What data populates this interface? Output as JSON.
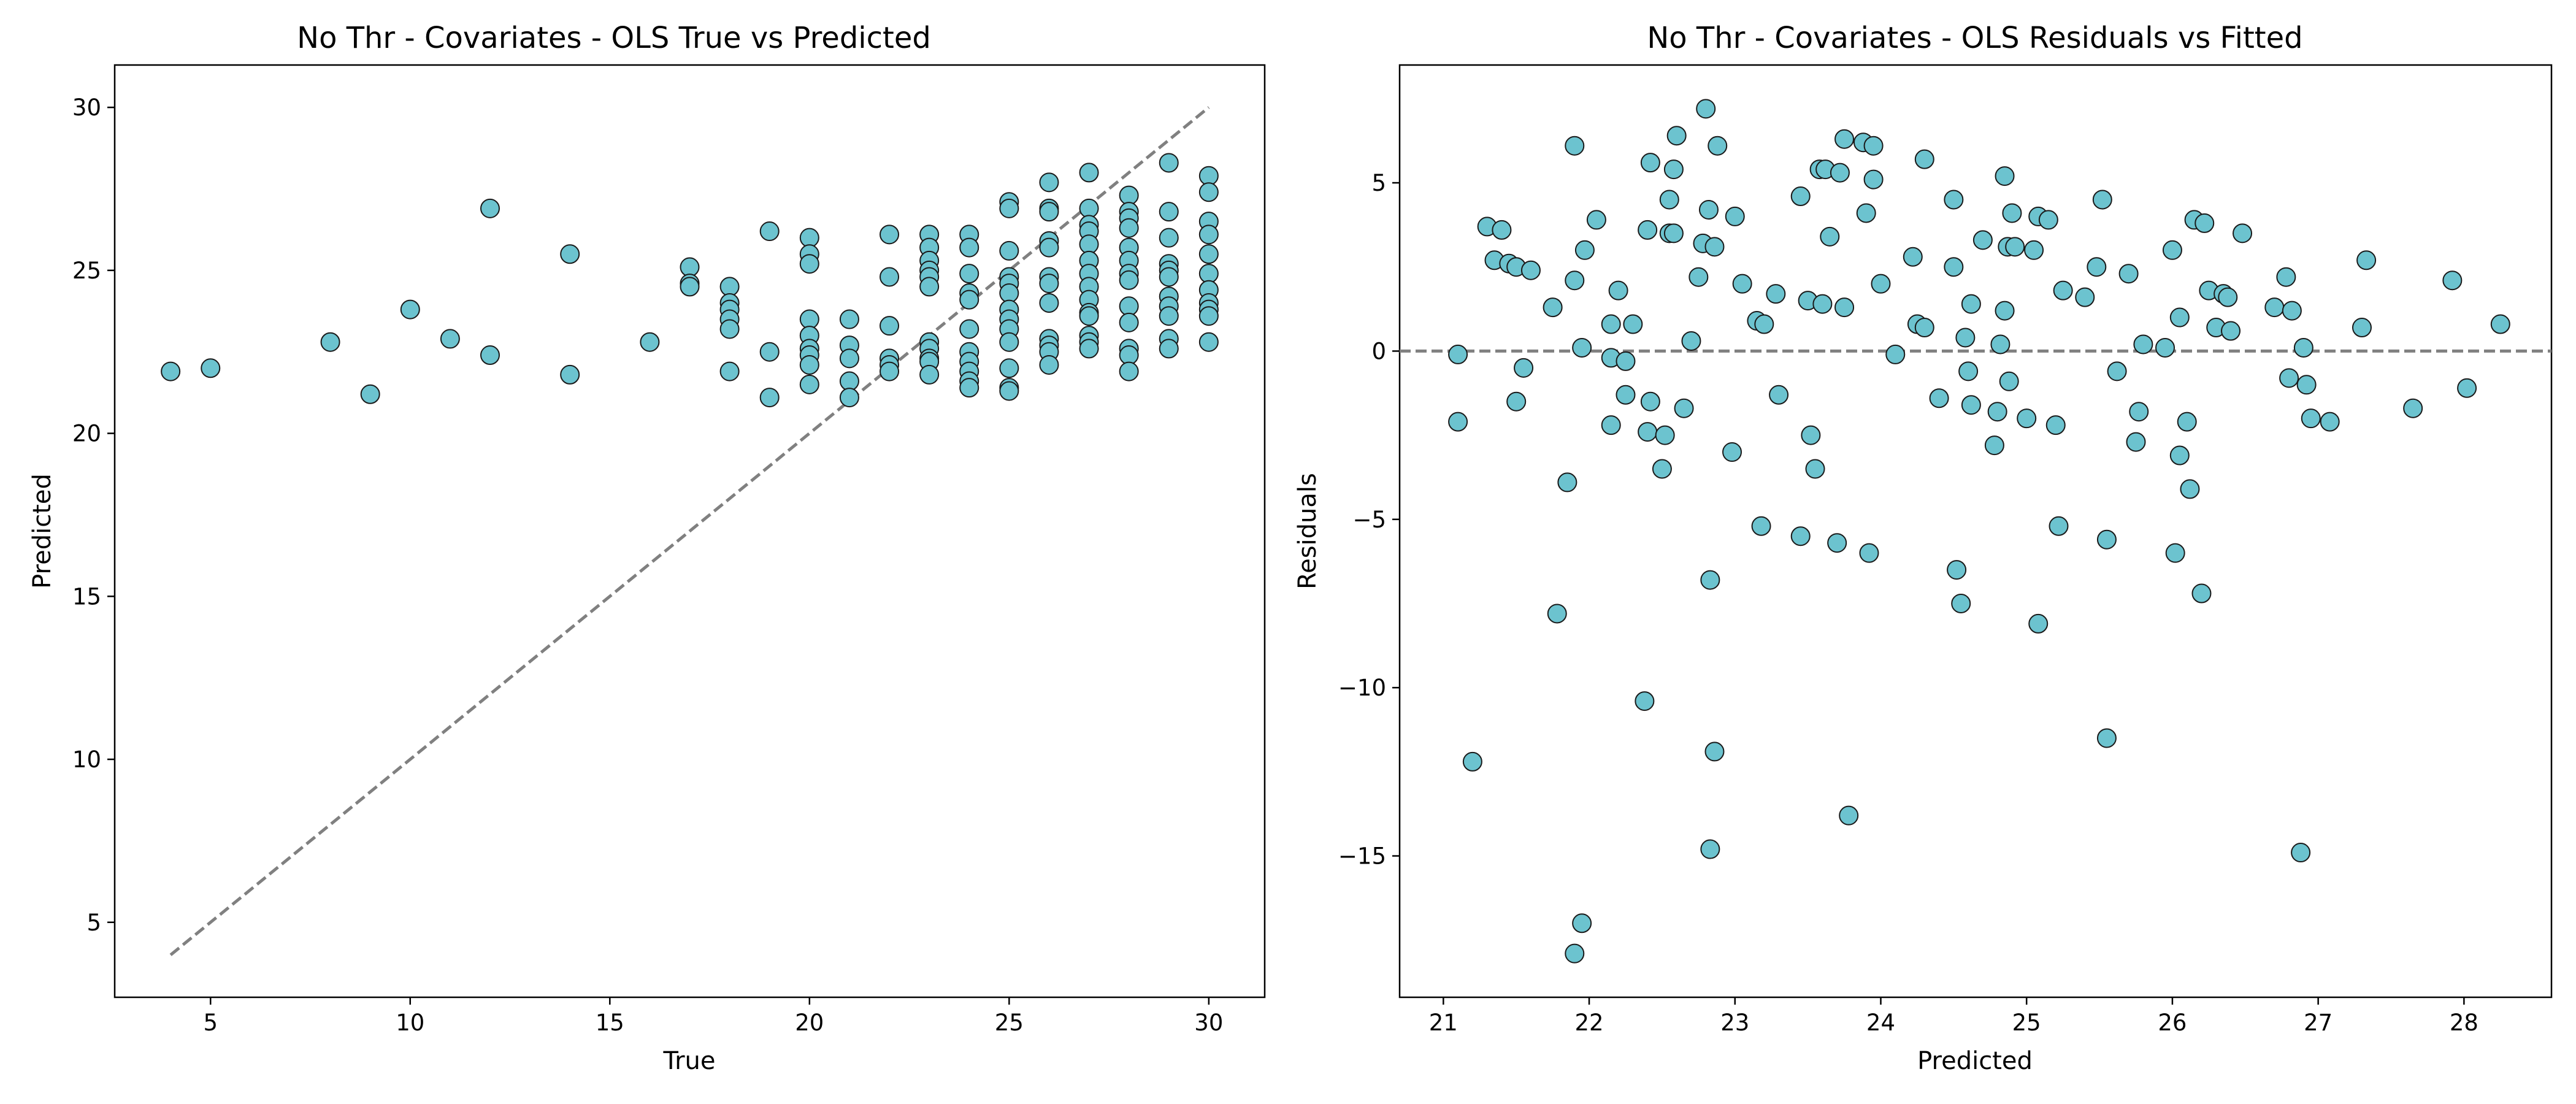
{
  "style": {
    "marker_fill": "#6cc3cf",
    "marker_edge": "#1a1a1a",
    "reference_line_color": "#808080",
    "reference_line_style": "dashed"
  },
  "chart_data": [
    {
      "type": "scatter",
      "title": "No Thr - Covariates - OLS True vs Predicted",
      "xlabel": "True",
      "ylabel": "Predicted",
      "xlim": [
        2.6,
        31.4
      ],
      "ylim": [
        2.7,
        31.3
      ],
      "xticks": [
        5,
        10,
        15,
        20,
        25,
        30
      ],
      "yticks": [
        5,
        10,
        15,
        20,
        25,
        30
      ],
      "grid": false,
      "reference_line": {
        "from": [
          4,
          4
        ],
        "to": [
          30,
          30
        ]
      },
      "points": [
        [
          4,
          21.9
        ],
        [
          5,
          22.0
        ],
        [
          8,
          22.8
        ],
        [
          9,
          21.2
        ],
        [
          10,
          23.8
        ],
        [
          11,
          22.9
        ],
        [
          12,
          26.9
        ],
        [
          12,
          22.4
        ],
        [
          14,
          25.5
        ],
        [
          14,
          21.8
        ],
        [
          16,
          22.8
        ],
        [
          17,
          25.1
        ],
        [
          17,
          24.6
        ],
        [
          17,
          24.5
        ],
        [
          18,
          24.5
        ],
        [
          18,
          24.0
        ],
        [
          18,
          23.8
        ],
        [
          18,
          23.5
        ],
        [
          18,
          23.2
        ],
        [
          18,
          21.9
        ],
        [
          19,
          26.2
        ],
        [
          19,
          22.5
        ],
        [
          19,
          21.1
        ],
        [
          20,
          26.0
        ],
        [
          20,
          25.5
        ],
        [
          20,
          25.2
        ],
        [
          20,
          23.5
        ],
        [
          20,
          23.0
        ],
        [
          20,
          22.6
        ],
        [
          20,
          22.4
        ],
        [
          20,
          22.1
        ],
        [
          20,
          21.5
        ],
        [
          21,
          23.5
        ],
        [
          21,
          22.7
        ],
        [
          21,
          22.3
        ],
        [
          21,
          21.6
        ],
        [
          21,
          21.1
        ],
        [
          22,
          26.1
        ],
        [
          22,
          24.8
        ],
        [
          22,
          23.3
        ],
        [
          22,
          22.3
        ],
        [
          22,
          22.1
        ],
        [
          22,
          21.9
        ],
        [
          23,
          26.1
        ],
        [
          23,
          25.7
        ],
        [
          23,
          25.3
        ],
        [
          23,
          25.0
        ],
        [
          23,
          24.8
        ],
        [
          23,
          24.5
        ],
        [
          23,
          22.8
        ],
        [
          23,
          22.6
        ],
        [
          23,
          22.3
        ],
        [
          23,
          22.2
        ],
        [
          23,
          21.8
        ],
        [
          24,
          26.1
        ],
        [
          24,
          25.7
        ],
        [
          24,
          24.9
        ],
        [
          24,
          24.3
        ],
        [
          24,
          24.1
        ],
        [
          24,
          23.2
        ],
        [
          24,
          22.5
        ],
        [
          24,
          22.2
        ],
        [
          24,
          21.9
        ],
        [
          24,
          21.6
        ],
        [
          24,
          21.4
        ],
        [
          25,
          27.1
        ],
        [
          25,
          26.9
        ],
        [
          25,
          25.6
        ],
        [
          25,
          24.8
        ],
        [
          25,
          24.6
        ],
        [
          25,
          24.3
        ],
        [
          25,
          23.8
        ],
        [
          25,
          23.5
        ],
        [
          25,
          23.2
        ],
        [
          25,
          22.8
        ],
        [
          25,
          22.0
        ],
        [
          25,
          21.4
        ],
        [
          25,
          21.3
        ],
        [
          26,
          27.7
        ],
        [
          26,
          26.9
        ],
        [
          26,
          26.8
        ],
        [
          26,
          25.9
        ],
        [
          26,
          25.7
        ],
        [
          26,
          24.8
        ],
        [
          26,
          24.6
        ],
        [
          26,
          24.0
        ],
        [
          26,
          22.9
        ],
        [
          26,
          22.7
        ],
        [
          26,
          22.5
        ],
        [
          26,
          22.1
        ],
        [
          27,
          28.0
        ],
        [
          27,
          26.9
        ],
        [
          27,
          26.4
        ],
        [
          27,
          26.2
        ],
        [
          27,
          25.8
        ],
        [
          27,
          25.3
        ],
        [
          27,
          24.9
        ],
        [
          27,
          24.5
        ],
        [
          27,
          24.1
        ],
        [
          27,
          23.7
        ],
        [
          27,
          23.6
        ],
        [
          27,
          23.0
        ],
        [
          27,
          22.8
        ],
        [
          27,
          22.6
        ],
        [
          28,
          27.3
        ],
        [
          28,
          26.8
        ],
        [
          28,
          26.6
        ],
        [
          28,
          26.3
        ],
        [
          28,
          25.7
        ],
        [
          28,
          25.3
        ],
        [
          28,
          24.9
        ],
        [
          28,
          24.7
        ],
        [
          28,
          23.9
        ],
        [
          28,
          23.4
        ],
        [
          28,
          22.6
        ],
        [
          28,
          22.4
        ],
        [
          28,
          21.9
        ],
        [
          29,
          28.3
        ],
        [
          29,
          26.8
        ],
        [
          29,
          26.0
        ],
        [
          29,
          25.2
        ],
        [
          29,
          25.0
        ],
        [
          29,
          24.8
        ],
        [
          29,
          24.2
        ],
        [
          29,
          23.9
        ],
        [
          29,
          23.6
        ],
        [
          29,
          22.9
        ],
        [
          29,
          22.6
        ],
        [
          30,
          27.9
        ],
        [
          30,
          27.4
        ],
        [
          30,
          26.5
        ],
        [
          30,
          26.1
        ],
        [
          30,
          25.5
        ],
        [
          30,
          24.9
        ],
        [
          30,
          24.4
        ],
        [
          30,
          24.0
        ],
        [
          30,
          23.8
        ],
        [
          30,
          23.6
        ],
        [
          30,
          22.8
        ]
      ]
    },
    {
      "type": "scatter",
      "title": "No Thr - Covariates - OLS Residuals vs Fitted",
      "xlabel": "Predicted",
      "ylabel": "Residuals",
      "xlim": [
        20.7,
        28.6
      ],
      "ylim": [
        -19.2,
        8.5
      ],
      "xticks": [
        21,
        22,
        23,
        24,
        25,
        26,
        27,
        28
      ],
      "yticks": [
        -15,
        -10,
        -5,
        0,
        5
      ],
      "tick_labels_y": [
        "−15",
        "−10",
        "−5",
        "0",
        "5"
      ],
      "grid": false,
      "reference_line": {
        "y": 0
      },
      "points": [
        [
          21.1,
          -0.1
        ],
        [
          21.1,
          -2.1
        ],
        [
          21.2,
          -12.2
        ],
        [
          21.3,
          3.7
        ],
        [
          21.35,
          2.7
        ],
        [
          21.4,
          3.6
        ],
        [
          21.45,
          2.6
        ],
        [
          21.5,
          2.5
        ],
        [
          21.5,
          -1.5
        ],
        [
          21.55,
          -0.5
        ],
        [
          21.6,
          2.4
        ],
        [
          21.75,
          1.3
        ],
        [
          21.78,
          -7.8
        ],
        [
          21.85,
          -3.9
        ],
        [
          21.9,
          2.1
        ],
        [
          21.9,
          6.1
        ],
        [
          21.9,
          -17.9
        ],
        [
          21.95,
          0.1
        ],
        [
          21.95,
          -17.0
        ],
        [
          21.97,
          3.0
        ],
        [
          22.05,
          3.9
        ],
        [
          22.15,
          0.8
        ],
        [
          22.15,
          -2.2
        ],
        [
          22.15,
          -0.2
        ],
        [
          22.2,
          1.8
        ],
        [
          22.25,
          -1.3
        ],
        [
          22.25,
          -0.3
        ],
        [
          22.3,
          0.8
        ],
        [
          22.38,
          -10.4
        ],
        [
          22.4,
          -2.4
        ],
        [
          22.4,
          3.6
        ],
        [
          22.42,
          5.6
        ],
        [
          22.42,
          -1.5
        ],
        [
          22.5,
          -3.5
        ],
        [
          22.52,
          -2.5
        ],
        [
          22.55,
          3.5
        ],
        [
          22.55,
          4.5
        ],
        [
          22.58,
          3.5
        ],
        [
          22.58,
          5.4
        ],
        [
          22.6,
          6.4
        ],
        [
          22.65,
          -1.7
        ],
        [
          22.7,
          0.3
        ],
        [
          22.75,
          2.2
        ],
        [
          22.78,
          3.2
        ],
        [
          22.8,
          7.2
        ],
        [
          22.82,
          4.2
        ],
        [
          22.83,
          -6.8
        ],
        [
          22.83,
          -14.8
        ],
        [
          22.86,
          3.1
        ],
        [
          22.86,
          -11.9
        ],
        [
          22.88,
          6.1
        ],
        [
          22.98,
          -3.0
        ],
        [
          23.0,
          4.0
        ],
        [
          23.05,
          2.0
        ],
        [
          23.15,
          0.9
        ],
        [
          23.18,
          -5.2
        ],
        [
          23.2,
          0.8
        ],
        [
          23.28,
          1.7
        ],
        [
          23.3,
          -1.3
        ],
        [
          23.45,
          4.6
        ],
        [
          23.45,
          -5.5
        ],
        [
          23.5,
          1.5
        ],
        [
          23.52,
          -2.5
        ],
        [
          23.55,
          -3.5
        ],
        [
          23.58,
          5.4
        ],
        [
          23.6,
          1.4
        ],
        [
          23.62,
          5.4
        ],
        [
          23.65,
          3.4
        ],
        [
          23.7,
          -5.7
        ],
        [
          23.72,
          5.3
        ],
        [
          23.75,
          1.3
        ],
        [
          23.75,
          6.3
        ],
        [
          23.78,
          -13.8
        ],
        [
          23.88,
          6.2
        ],
        [
          23.9,
          4.1
        ],
        [
          23.92,
          -6.0
        ],
        [
          23.95,
          5.1
        ],
        [
          23.95,
          6.1
        ],
        [
          24.0,
          2.0
        ],
        [
          24.1,
          -0.1
        ],
        [
          24.22,
          2.8
        ],
        [
          24.25,
          0.8
        ],
        [
          24.3,
          0.7
        ],
        [
          24.3,
          5.7
        ],
        [
          24.4,
          -1.4
        ],
        [
          24.5,
          2.5
        ],
        [
          24.5,
          4.5
        ],
        [
          24.52,
          -6.5
        ],
        [
          24.55,
          -7.5
        ],
        [
          24.58,
          0.4
        ],
        [
          24.6,
          -0.6
        ],
        [
          24.62,
          -1.6
        ],
        [
          24.62,
          1.4
        ],
        [
          24.7,
          3.3
        ],
        [
          24.78,
          -2.8
        ],
        [
          24.8,
          -1.8
        ],
        [
          24.82,
          0.2
        ],
        [
          24.85,
          1.2
        ],
        [
          24.85,
          5.2
        ],
        [
          24.87,
          3.1
        ],
        [
          24.88,
          -0.9
        ],
        [
          24.9,
          4.1
        ],
        [
          24.92,
          3.1
        ],
        [
          25.0,
          -2.0
        ],
        [
          25.05,
          3.0
        ],
        [
          25.08,
          4.0
        ],
        [
          25.08,
          -8.1
        ],
        [
          25.15,
          3.9
        ],
        [
          25.2,
          -2.2
        ],
        [
          25.22,
          -5.2
        ],
        [
          25.25,
          1.8
        ],
        [
          25.4,
          1.6
        ],
        [
          25.48,
          2.5
        ],
        [
          25.52,
          4.5
        ],
        [
          25.55,
          -5.6
        ],
        [
          25.55,
          -11.5
        ],
        [
          25.62,
          -0.6
        ],
        [
          25.7,
          2.3
        ],
        [
          25.75,
          -2.7
        ],
        [
          25.77,
          -1.8
        ],
        [
          25.8,
          0.2
        ],
        [
          25.95,
          0.1
        ],
        [
          26.0,
          3.0
        ],
        [
          26.02,
          -6.0
        ],
        [
          26.05,
          -3.1
        ],
        [
          26.05,
          1.0
        ],
        [
          26.1,
          -2.1
        ],
        [
          26.12,
          -4.1
        ],
        [
          26.15,
          3.9
        ],
        [
          26.2,
          -7.2
        ],
        [
          26.22,
          3.8
        ],
        [
          26.25,
          1.8
        ],
        [
          26.3,
          0.7
        ],
        [
          26.35,
          1.7
        ],
        [
          26.38,
          1.6
        ],
        [
          26.4,
          0.6
        ],
        [
          26.48,
          3.5
        ],
        [
          26.7,
          1.3
        ],
        [
          26.78,
          2.2
        ],
        [
          26.8,
          -0.8
        ],
        [
          26.82,
          1.2
        ],
        [
          26.88,
          -14.9
        ],
        [
          26.9,
          0.1
        ],
        [
          26.92,
          -1.0
        ],
        [
          26.95,
          -2.0
        ],
        [
          27.08,
          -2.1
        ],
        [
          27.3,
          0.7
        ],
        [
          27.33,
          2.7
        ],
        [
          27.65,
          -1.7
        ],
        [
          27.92,
          2.1
        ],
        [
          28.02,
          -1.1
        ],
        [
          28.25,
          0.8
        ]
      ]
    }
  ]
}
